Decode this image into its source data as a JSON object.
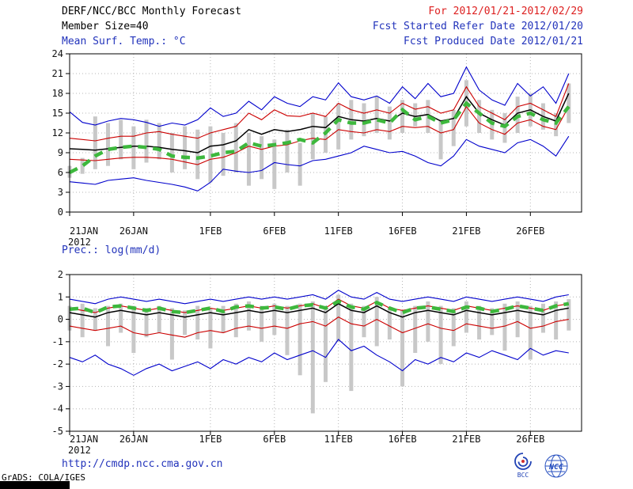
{
  "header": {
    "title": "DERF/NCC/BCC Monthly Forecast",
    "member_size": "Member Size=40",
    "forecast_range": "For 2012/01/21-2012/02/29",
    "fcst_started": "Fcst Started Refer Date 2012/01/20",
    "fcst_produced": "Fcst Produced Date 2012/01/21"
  },
  "footer": {
    "url": "http://cmdp.ncc.cma.gov.cn",
    "grads_credit": "GrADS: COLA/IGES",
    "logo_left_label": "BCC",
    "logo_right_label": "NCC"
  },
  "colors": {
    "header_red": "#dd2020",
    "header_blue": "#2233bb",
    "line_blue": "#0000cc",
    "line_red": "#cc0000",
    "line_black": "#000000",
    "line_green": "#3db83d",
    "bar_gray": "#c8c8c8"
  },
  "chart_data": [
    {
      "type": "line",
      "title": "Mean Surf. Temp.: °C",
      "ylim": [
        0,
        24
      ],
      "yticks": [
        24,
        21,
        18,
        15,
        12,
        9,
        6,
        3,
        0
      ],
      "xtick_labels": [
        "21JAN",
        "26JAN",
        "1FEB",
        "6FEB",
        "11FEB",
        "16FEB",
        "21FEB",
        "26FEB"
      ],
      "xtick_days": [
        0,
        5,
        11,
        16,
        21,
        26,
        31,
        36
      ],
      "x_year": "2012",
      "x_span": 40,
      "grid": true,
      "legend": "none",
      "series": [
        {
          "name": "ensemble_max",
          "color": "#0000cc",
          "width": 1.1,
          "values": [
            15.2,
            13.6,
            13.2,
            13.8,
            14.2,
            14.0,
            13.6,
            13.0,
            13.5,
            13.2,
            14.0,
            15.8,
            14.5,
            15.0,
            16.8,
            15.5,
            17.5,
            16.5,
            16.0,
            17.5,
            17.0,
            19.6,
            17.5,
            17.0,
            17.6,
            16.5,
            19.0,
            17.2,
            19.5,
            17.5,
            18.0,
            22.0,
            18.5,
            17.0,
            16.2,
            19.5,
            17.6,
            19.0,
            16.5,
            21.0
          ]
        },
        {
          "name": "ensemble_upper",
          "color": "#cc0000",
          "width": 1.1,
          "values": [
            11.2,
            11.0,
            10.8,
            11.2,
            11.5,
            11.5,
            12.0,
            12.2,
            11.8,
            11.5,
            11.2,
            12.0,
            12.5,
            13.0,
            15.0,
            14.0,
            15.5,
            14.6,
            14.5,
            15.0,
            14.5,
            16.5,
            15.5,
            15.0,
            15.5,
            15.0,
            16.5,
            15.6,
            16.0,
            15.0,
            15.5,
            19.0,
            16.0,
            15.0,
            14.0,
            16.0,
            16.5,
            15.5,
            14.5,
            19.5
          ]
        },
        {
          "name": "ensemble_lower",
          "color": "#cc0000",
          "width": 1.1,
          "values": [
            8.0,
            7.9,
            7.8,
            8.0,
            8.2,
            8.3,
            8.3,
            8.2,
            8.0,
            7.6,
            7.2,
            8.0,
            8.3,
            9.0,
            10.0,
            9.5,
            10.0,
            10.2,
            10.8,
            11.2,
            11.0,
            12.5,
            12.2,
            12.0,
            12.5,
            12.2,
            13.0,
            12.8,
            13.0,
            12.0,
            12.5,
            16.0,
            13.5,
            12.5,
            11.8,
            13.5,
            14.0,
            13.0,
            12.5,
            16.0
          ]
        },
        {
          "name": "ensemble_min",
          "color": "#0000cc",
          "width": 1.1,
          "values": [
            4.6,
            4.4,
            4.2,
            4.8,
            5.0,
            5.2,
            4.8,
            4.5,
            4.2,
            3.8,
            3.2,
            4.5,
            6.5,
            6.2,
            6.0,
            6.3,
            7.5,
            7.2,
            7.0,
            7.8,
            8.0,
            8.5,
            9.0,
            10.0,
            9.5,
            9.0,
            9.2,
            8.5,
            7.5,
            7.0,
            8.5,
            11.0,
            10.0,
            9.5,
            9.0,
            10.5,
            11.0,
            10.0,
            8.5,
            11.5
          ]
        },
        {
          "name": "ensemble_mean",
          "color": "#000000",
          "width": 1.5,
          "values": [
            9.6,
            9.5,
            9.4,
            9.6,
            9.8,
            10.0,
            10.0,
            9.8,
            9.5,
            9.3,
            9.0,
            10.0,
            10.2,
            10.8,
            12.5,
            11.8,
            12.5,
            12.2,
            12.5,
            13.0,
            12.8,
            14.5,
            14.0,
            13.8,
            14.2,
            13.8,
            15.0,
            14.5,
            14.8,
            13.8,
            14.2,
            17.5,
            15.0,
            14.0,
            13.2,
            15.0,
            15.5,
            14.5,
            13.8,
            18.0
          ]
        },
        {
          "name": "observation",
          "color": "#3db83d",
          "width": 4.5,
          "dash": "11 8",
          "values": [
            6.0,
            7.0,
            8.5,
            9.5,
            9.8,
            10.0,
            9.8,
            9.5,
            8.5,
            8.3,
            8.2,
            8.5,
            9.0,
            9.2,
            10.5,
            10.0,
            10.2,
            10.5,
            11.0,
            10.5,
            12.0,
            14.0,
            13.5,
            13.5,
            14.0,
            13.5,
            15.5,
            14.0,
            14.5,
            13.5,
            14.0,
            16.5,
            15.0,
            13.5,
            13.0,
            14.5,
            15.0,
            14.0,
            13.5,
            16.0
          ]
        }
      ],
      "bars": {
        "name": "ensemble_spread",
        "color": "#c8c8c8",
        "low": [
          5.2,
          5.8,
          6.5,
          7.0,
          8.0,
          6.5,
          7.5,
          8.0,
          6.0,
          6.5,
          5.0,
          4.5,
          5.5,
          6.0,
          4.0,
          5.0,
          3.5,
          6.0,
          4.0,
          8.0,
          9.0,
          9.5,
          11.0,
          11.5,
          12.0,
          11.0,
          12.0,
          13.0,
          12.0,
          8.0,
          10.0,
          13.0,
          12.0,
          11.0,
          10.5,
          12.0,
          13.0,
          12.5,
          11.5,
          13.5
        ],
        "high": [
          7.0,
          8.2,
          14.5,
          13.5,
          14.0,
          13.0,
          14.0,
          13.5,
          12.0,
          13.0,
          12.5,
          13.0,
          12.0,
          13.5,
          12.0,
          11.5,
          11.0,
          12.5,
          10.5,
          15.0,
          14.5,
          16.5,
          17.0,
          16.5,
          17.5,
          16.0,
          17.0,
          16.5,
          17.0,
          14.0,
          15.5,
          20.0,
          17.0,
          15.5,
          15.0,
          17.5,
          18.0,
          16.5,
          15.0,
          19.5
        ]
      }
    },
    {
      "type": "line",
      "title": "Prec.: log(mm/d)",
      "ylim": [
        -5,
        2
      ],
      "yticks": [
        2,
        1,
        0,
        -1,
        -2,
        -3,
        -4,
        -5
      ],
      "xtick_labels": [
        "21JAN",
        "26JAN",
        "1FEB",
        "6FEB",
        "11FEB",
        "16FEB",
        "21FEB",
        "26FEB"
      ],
      "xtick_days": [
        0,
        5,
        11,
        16,
        21,
        26,
        31,
        36
      ],
      "x_year": "2012",
      "x_span": 40,
      "grid": true,
      "legend": "none",
      "series": [
        {
          "name": "ensemble_max",
          "color": "#0000cc",
          "width": 1.1,
          "values": [
            0.9,
            0.8,
            0.7,
            0.9,
            1.0,
            0.9,
            0.8,
            0.9,
            0.8,
            0.7,
            0.8,
            0.9,
            0.8,
            0.9,
            1.0,
            0.9,
            1.0,
            0.9,
            1.0,
            1.1,
            0.9,
            1.3,
            1.0,
            0.9,
            1.2,
            0.9,
            0.8,
            0.9,
            1.0,
            0.9,
            0.8,
            1.0,
            0.9,
            0.8,
            0.9,
            1.0,
            0.9,
            0.8,
            1.0,
            1.1
          ]
        },
        {
          "name": "ensemble_upper",
          "color": "#cc0000",
          "width": 1.1,
          "values": [
            0.5,
            0.4,
            0.3,
            0.5,
            0.6,
            0.5,
            0.4,
            0.5,
            0.4,
            0.3,
            0.4,
            0.5,
            0.4,
            0.5,
            0.6,
            0.5,
            0.6,
            0.5,
            0.6,
            0.7,
            0.5,
            0.9,
            0.6,
            0.5,
            0.8,
            0.5,
            0.4,
            0.5,
            0.6,
            0.5,
            0.4,
            0.6,
            0.5,
            0.4,
            0.5,
            0.6,
            0.5,
            0.4,
            0.6,
            0.7
          ]
        },
        {
          "name": "ensemble_lower",
          "color": "#cc0000",
          "width": 1.1,
          "values": [
            -0.3,
            -0.4,
            -0.5,
            -0.4,
            -0.3,
            -0.6,
            -0.7,
            -0.6,
            -0.7,
            -0.8,
            -0.6,
            -0.5,
            -0.6,
            -0.4,
            -0.3,
            -0.4,
            -0.3,
            -0.4,
            -0.2,
            -0.1,
            -0.3,
            0.1,
            -0.2,
            -0.3,
            0.0,
            -0.3,
            -0.6,
            -0.4,
            -0.2,
            -0.4,
            -0.5,
            -0.2,
            -0.3,
            -0.4,
            -0.3,
            -0.1,
            -0.4,
            -0.3,
            -0.1,
            0.0
          ]
        },
        {
          "name": "ensemble_min",
          "color": "#0000cc",
          "width": 1.1,
          "values": [
            -1.7,
            -1.9,
            -1.6,
            -2.0,
            -2.2,
            -2.5,
            -2.2,
            -2.0,
            -2.3,
            -2.1,
            -1.9,
            -2.2,
            -1.8,
            -2.0,
            -1.7,
            -1.9,
            -1.5,
            -1.8,
            -1.6,
            -1.4,
            -1.7,
            -0.9,
            -1.4,
            -1.2,
            -1.6,
            -1.9,
            -2.3,
            -1.8,
            -2.0,
            -1.7,
            -1.9,
            -1.5,
            -1.7,
            -1.4,
            -1.6,
            -1.8,
            -1.3,
            -1.6,
            -1.4,
            -1.5
          ]
        },
        {
          "name": "ensemble_mean",
          "color": "#000000",
          "width": 1.5,
          "values": [
            0.3,
            0.2,
            0.1,
            0.3,
            0.4,
            0.3,
            0.2,
            0.3,
            0.2,
            0.1,
            0.2,
            0.3,
            0.2,
            0.3,
            0.4,
            0.3,
            0.4,
            0.3,
            0.4,
            0.5,
            0.3,
            0.7,
            0.4,
            0.3,
            0.6,
            0.3,
            0.1,
            0.3,
            0.4,
            0.3,
            0.2,
            0.4,
            0.3,
            0.2,
            0.3,
            0.4,
            0.3,
            0.2,
            0.4,
            0.5
          ]
        },
        {
          "name": "observation",
          "color": "#3db83d",
          "width": 4.5,
          "dash": "11 8",
          "values": [
            0.45,
            0.5,
            0.3,
            0.55,
            0.6,
            0.5,
            0.4,
            0.5,
            0.35,
            0.3,
            0.4,
            0.5,
            0.35,
            0.55,
            0.6,
            0.5,
            0.55,
            0.45,
            0.6,
            0.65,
            0.5,
            0.8,
            0.55,
            0.45,
            0.75,
            0.5,
            0.3,
            0.5,
            0.55,
            0.45,
            0.35,
            0.55,
            0.5,
            0.35,
            0.45,
            0.6,
            0.5,
            0.4,
            0.6,
            0.7
          ]
        }
      ],
      "bars": {
        "name": "ensemble_spread",
        "color": "#c8c8c8",
        "low": [
          -0.5,
          -0.8,
          -0.5,
          -1.2,
          -0.6,
          -1.5,
          -0.8,
          -0.6,
          -1.8,
          -0.7,
          -0.9,
          -1.3,
          -0.6,
          -0.8,
          -0.5,
          -1.0,
          -0.7,
          -1.6,
          -2.5,
          -4.2,
          -2.8,
          -1.0,
          -3.2,
          -0.8,
          -1.2,
          -0.9,
          -3.0,
          -1.5,
          -1.0,
          -2.0,
          -1.2,
          -0.6,
          -0.9,
          -0.7,
          -1.4,
          -0.8,
          -1.8,
          -0.6,
          -0.9,
          -0.5
        ],
        "high": [
          0.6,
          0.7,
          0.5,
          0.6,
          0.7,
          0.6,
          0.5,
          0.6,
          0.5,
          0.4,
          0.6,
          0.5,
          0.6,
          0.7,
          0.8,
          0.6,
          0.7,
          0.6,
          0.7,
          0.8,
          0.6,
          1.1,
          0.7,
          0.6,
          1.0,
          0.5,
          0.4,
          0.6,
          0.8,
          0.6,
          0.5,
          0.8,
          0.6,
          0.5,
          0.7,
          0.8,
          0.6,
          0.7,
          0.8,
          0.9
        ]
      }
    }
  ]
}
